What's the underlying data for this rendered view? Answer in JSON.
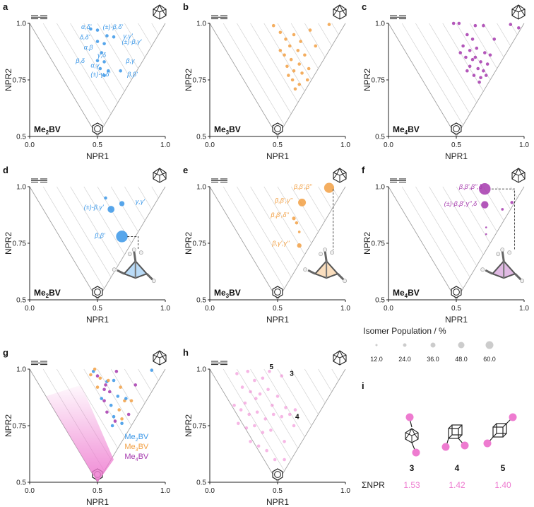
{
  "colors": {
    "blue": "#3a97e8",
    "orange": "#f2a044",
    "purple": "#a63aae",
    "pink": "#ee7bd0",
    "grey": "#bfbfbf"
  },
  "chart_data": [
    {
      "panel": "a",
      "type": "scatter",
      "compound": [
        "Me",
        "2",
        "BV"
      ],
      "xlabel": "NPR1",
      "ylabel": "NPR2",
      "xticks": [
        "0.0",
        "0.5",
        "1.0"
      ],
      "yticks": [
        "0.5",
        "0.75",
        "1.0"
      ],
      "color": "blue",
      "points": [
        [
          0.45,
          0.975
        ],
        [
          0.5,
          0.97
        ],
        [
          0.57,
          0.945
        ],
        [
          0.5,
          0.92
        ],
        [
          0.62,
          0.94
        ],
        [
          0.55,
          0.91
        ],
        [
          0.53,
          0.87
        ],
        [
          0.5,
          0.835
        ],
        [
          0.55,
          0.83
        ],
        [
          0.52,
          0.8
        ],
        [
          0.58,
          0.79
        ],
        [
          0.55,
          0.77
        ],
        [
          0.67,
          0.79
        ]
      ],
      "annotations": [
        {
          "text": "α,δ'",
          "x": 0.38,
          "y": 0.975
        },
        {
          "text": "(±)-β,δ'",
          "x": 0.54,
          "y": 0.975
        },
        {
          "text": "δ,δ'",
          "x": 0.37,
          "y": 0.93
        },
        {
          "text": "γ,γ'",
          "x": 0.69,
          "y": 0.935
        },
        {
          "text": "(±)-β,γ'",
          "x": 0.68,
          "y": 0.91
        },
        {
          "text": "α,β",
          "x": 0.4,
          "y": 0.885
        },
        {
          "text": "γ,δ",
          "x": 0.5,
          "y": 0.85
        },
        {
          "text": "β,δ",
          "x": 0.34,
          "y": 0.825
        },
        {
          "text": "β,γ",
          "x": 0.71,
          "y": 0.825
        },
        {
          "text": "α,γ",
          "x": 0.45,
          "y": 0.805
        },
        {
          "text": "(±)-γ,δ'",
          "x": 0.45,
          "y": 0.765
        },
        {
          "text": "β,β'",
          "x": 0.72,
          "y": 0.765
        }
      ]
    },
    {
      "panel": "b",
      "type": "scatter",
      "compound": [
        "Me",
        "3",
        "BV"
      ],
      "xlabel": "NPR1",
      "ylabel": "NPR2",
      "xticks": [
        "0.0",
        "0.5",
        "1.0"
      ],
      "yticks": [
        "0.5",
        "0.75",
        "1.0"
      ],
      "color": "orange",
      "points": [
        [
          0.47,
          0.99
        ],
        [
          0.52,
          0.96
        ],
        [
          0.56,
          0.93
        ],
        [
          0.62,
          0.95
        ],
        [
          0.67,
          0.92
        ],
        [
          0.59,
          0.9
        ],
        [
          0.65,
          0.88
        ],
        [
          0.7,
          0.86
        ],
        [
          0.55,
          0.86
        ],
        [
          0.6,
          0.84
        ],
        [
          0.66,
          0.82
        ],
        [
          0.57,
          0.81
        ],
        [
          0.62,
          0.79
        ],
        [
          0.68,
          0.78
        ],
        [
          0.73,
          0.8
        ],
        [
          0.61,
          0.75
        ],
        [
          0.66,
          0.73
        ],
        [
          0.72,
          0.75
        ],
        [
          0.63,
          0.71
        ],
        [
          0.78,
          0.9
        ],
        [
          0.74,
          0.97
        ],
        [
          0.88,
          0.995
        ],
        [
          0.52,
          0.88
        ],
        [
          0.58,
          0.77
        ]
      ]
    },
    {
      "panel": "c",
      "type": "scatter",
      "compound": [
        "Me",
        "4",
        "BV"
      ],
      "xlabel": "NPR1",
      "ylabel": "NPR2",
      "xticks": [
        "0.0",
        "0.5",
        "1.0"
      ],
      "yticks": [
        "0.5",
        "0.75",
        "1.0"
      ],
      "color": "purple",
      "points": [
        [
          0.48,
          1.0
        ],
        [
          0.52,
          1.0
        ],
        [
          0.64,
          0.99
        ],
        [
          0.7,
          0.99
        ],
        [
          0.9,
          0.995
        ],
        [
          0.96,
          0.98
        ],
        [
          0.58,
          0.95
        ],
        [
          0.62,
          0.93
        ],
        [
          0.78,
          0.93
        ],
        [
          0.55,
          0.9
        ],
        [
          0.6,
          0.88
        ],
        [
          0.65,
          0.89
        ],
        [
          0.71,
          0.87
        ],
        [
          0.75,
          0.86
        ],
        [
          0.57,
          0.85
        ],
        [
          0.62,
          0.84
        ],
        [
          0.68,
          0.83
        ],
        [
          0.73,
          0.82
        ],
        [
          0.6,
          0.81
        ],
        [
          0.66,
          0.8
        ],
        [
          0.7,
          0.79
        ],
        [
          0.63,
          0.77
        ],
        [
          0.68,
          0.76
        ],
        [
          0.58,
          0.79
        ],
        [
          0.64,
          0.85
        ],
        [
          0.53,
          0.87
        ],
        [
          0.72,
          0.77
        ],
        [
          0.67,
          0.74
        ]
      ]
    },
    {
      "panel": "d",
      "type": "scatter",
      "compound": [
        "Me",
        "2",
        "BV"
      ],
      "xlabel": "NPR1",
      "ylabel": "NPR2",
      "xticks": [
        "0.0",
        "0.5",
        "1.0"
      ],
      "yticks": [
        "0.5",
        "0.75",
        "1.0"
      ],
      "color": "blue",
      "points": [
        [
          0.56,
          0.95,
          3
        ],
        [
          0.68,
          0.925,
          8
        ],
        [
          0.6,
          0.9,
          14
        ],
        [
          0.68,
          0.78,
          40
        ]
      ],
      "annotations": [
        {
          "text": "γ,γ'",
          "x": 0.78,
          "y": 0.925
        },
        {
          "text": "(±)-β,γ'",
          "x": 0.4,
          "y": 0.9
        },
        {
          "text": "β,β'",
          "x": 0.48,
          "y": 0.775
        }
      ]
    },
    {
      "panel": "e",
      "type": "scatter",
      "compound": [
        "Me",
        "3",
        "BV"
      ],
      "xlabel": "NPR1",
      "ylabel": "NPR2",
      "xticks": [
        "0.0",
        "0.5",
        "1.0"
      ],
      "yticks": [
        "0.5",
        "0.75",
        "1.0"
      ],
      "color": "orange",
      "points": [
        [
          0.88,
          0.995,
          30
        ],
        [
          0.68,
          0.93,
          18
        ],
        [
          0.62,
          0.86,
          4
        ],
        [
          0.64,
          0.84,
          3
        ],
        [
          0.66,
          0.8,
          2
        ],
        [
          0.66,
          0.74,
          6
        ]
      ],
      "annotations": [
        {
          "text": "β,β',β''",
          "x": 0.62,
          "y": 0.99
        },
        {
          "text": "β,β',γ''",
          "x": 0.48,
          "y": 0.93
        },
        {
          "text": "β,β',δ''",
          "x": 0.45,
          "y": 0.865
        },
        {
          "text": "β,γ',γ''",
          "x": 0.46,
          "y": 0.74
        }
      ]
    },
    {
      "panel": "f",
      "type": "scatter",
      "compound": [
        "Me",
        "4",
        "BV"
      ],
      "xlabel": "NPR1",
      "ylabel": "NPR2",
      "xticks": [
        "0.0",
        "0.5",
        "1.0"
      ],
      "yticks": [
        "0.5",
        "0.75",
        "1.0"
      ],
      "color": "purple",
      "points": [
        [
          0.71,
          0.99,
          40
        ],
        [
          0.71,
          0.92,
          16
        ],
        [
          0.91,
          0.93,
          3
        ],
        [
          0.84,
          0.9,
          2
        ],
        [
          0.72,
          0.82,
          1
        ],
        [
          0.72,
          0.79,
          1
        ]
      ],
      "annotations": [
        {
          "text": "β,β',β'',δ",
          "x": 0.52,
          "y": 0.99
        },
        {
          "text": "(±)-β,β',γ'',δ",
          "x": 0.41,
          "y": 0.915
        }
      ]
    },
    {
      "panel": "g",
      "type": "scatter",
      "compound": [
        "",
        "",
        ""
      ],
      "xlabel": "NPR1",
      "ylabel": "NPR2",
      "xticks": [
        "0.0",
        "0.5",
        "1.0"
      ],
      "yticks": [
        "0.5",
        "0.75",
        "1.0"
      ],
      "color": "mixed",
      "legend": [
        [
          "Me",
          "2",
          "BV",
          "blue"
        ],
        [
          "Me",
          "3",
          "BV",
          "orange"
        ],
        [
          "Me",
          "4",
          "BV",
          "purple"
        ]
      ],
      "points": [
        [
          0.47,
          0.99
        ],
        [
          0.52,
          0.96
        ],
        [
          0.56,
          0.93
        ],
        [
          0.62,
          0.95
        ],
        [
          0.67,
          0.92
        ],
        [
          0.59,
          0.9
        ],
        [
          0.65,
          0.88
        ],
        [
          0.7,
          0.86
        ],
        [
          0.55,
          0.86
        ],
        [
          0.6,
          0.84
        ],
        [
          0.66,
          0.82
        ],
        [
          0.57,
          0.81
        ],
        [
          0.62,
          0.79
        ],
        [
          0.68,
          0.78
        ],
        [
          0.73,
          0.8
        ],
        [
          0.61,
          0.75
        ],
        [
          0.45,
          0.975
        ],
        [
          0.5,
          0.97
        ],
        [
          0.57,
          0.945
        ],
        [
          0.5,
          0.92
        ],
        [
          0.55,
          0.91
        ],
        [
          0.53,
          0.87
        ],
        [
          0.48,
          1.0
        ],
        [
          0.64,
          0.99
        ],
        [
          0.9,
          0.995
        ],
        [
          0.58,
          0.95
        ],
        [
          0.78,
          0.93
        ],
        [
          0.71,
          0.87
        ],
        [
          0.75,
          0.86
        ],
        [
          0.63,
          0.77
        ],
        [
          0.68,
          0.76
        ]
      ]
    },
    {
      "panel": "h",
      "type": "scatter",
      "compound": [
        "",
        "",
        ""
      ],
      "xlabel": "NPR1",
      "ylabel": "NPR2",
      "xticks": [
        "0.0",
        "0.5",
        "1.0"
      ],
      "yticks": [
        "0.5",
        "0.75",
        "1.0"
      ],
      "color": "pink",
      "points": [
        [
          0.2,
          0.98
        ],
        [
          0.28,
          0.99
        ],
        [
          0.33,
          0.95
        ],
        [
          0.39,
          0.96
        ],
        [
          0.44,
          0.99
        ],
        [
          0.53,
          0.97
        ],
        [
          0.24,
          0.92
        ],
        [
          0.3,
          0.9
        ],
        [
          0.37,
          0.89
        ],
        [
          0.43,
          0.91
        ],
        [
          0.5,
          0.88
        ],
        [
          0.18,
          0.84
        ],
        [
          0.23,
          0.82
        ],
        [
          0.29,
          0.8
        ],
        [
          0.35,
          0.81
        ],
        [
          0.41,
          0.78
        ],
        [
          0.47,
          0.8
        ],
        [
          0.53,
          0.79
        ],
        [
          0.59,
          0.8
        ],
        [
          0.21,
          0.76
        ],
        [
          0.27,
          0.74
        ],
        [
          0.33,
          0.75
        ],
        [
          0.39,
          0.72
        ],
        [
          0.45,
          0.73
        ],
        [
          0.3,
          0.68
        ],
        [
          0.36,
          0.66
        ],
        [
          0.42,
          0.64
        ],
        [
          0.48,
          0.6
        ],
        [
          0.55,
          0.68
        ],
        [
          0.62,
          0.75
        ],
        [
          0.26,
          0.85
        ],
        [
          0.34,
          0.87
        ],
        [
          0.46,
          0.84
        ],
        [
          0.56,
          0.83
        ],
        [
          0.63,
          0.82
        ],
        [
          0.55,
          0.6
        ]
      ],
      "labels": [
        {
          "text": "5",
          "x": 0.44,
          "y": 1.0
        },
        {
          "text": "3",
          "x": 0.59,
          "y": 0.97
        },
        {
          "text": "4",
          "x": 0.63,
          "y": 0.78
        }
      ]
    }
  ],
  "legend": {
    "title": "Isomer Population / %",
    "ticks": [
      "12.0",
      "24.0",
      "36.0",
      "48.0",
      "60.0"
    ]
  },
  "panel_i": {
    "letter": "i",
    "compounds": [
      "3",
      "4",
      "5"
    ],
    "sum_label": "ΣNPR",
    "values": [
      "1.53",
      "1.42",
      "1.40"
    ]
  }
}
